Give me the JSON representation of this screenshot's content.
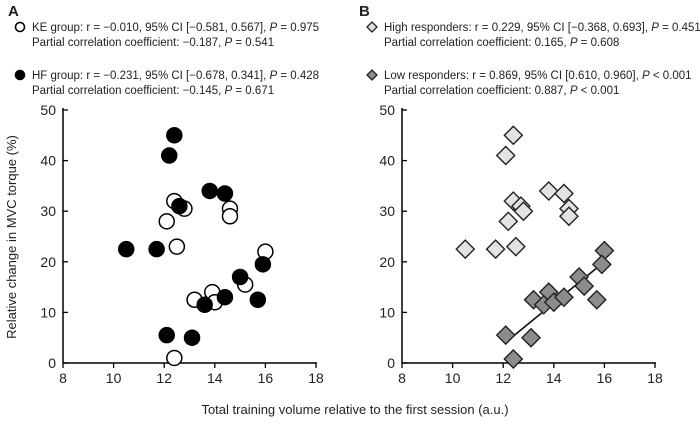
{
  "chart_data": [
    {
      "panel": "A",
      "type": "scatter",
      "xlabel": "Total training volume relative to the first session (a.u.)",
      "ylabel": "Relative change in MVC torque (%)",
      "xlim": [
        8,
        18
      ],
      "ylim": [
        0,
        50
      ],
      "xticks": [
        "8",
        "10",
        "12",
        "14",
        "16",
        "18"
      ],
      "yticks": [
        "0",
        "10",
        "20",
        "30",
        "40",
        "50"
      ],
      "legend": [
        {
          "line1": "KE group: r = −0.010, 95% CI [−0.581, 0.567], ",
          "p": "P",
          "line1b": " = 0.975",
          "line2": "Partial correlation coefficient: −0.187, ",
          "line2b": " = 0.541"
        },
        {
          "line1": "HF group: r = −0.231, 95% CI [−0.678, 0.341], ",
          "p": "P",
          "line1b": " = 0.428",
          "line2": "Partial correlation coefficient: −0.145, ",
          "line2b": " = 0.671"
        }
      ],
      "series": [
        {
          "name": "KE group",
          "marker": "open-circle",
          "color": "#ffffff",
          "points": [
            [
              12.4,
              32
            ],
            [
              12.1,
              28
            ],
            [
              12.8,
              30.5
            ],
            [
              12.5,
              23
            ],
            [
              14.6,
              30.5
            ],
            [
              14.6,
              29
            ],
            [
              16.0,
              22
            ],
            [
              13.2,
              12.5
            ],
            [
              13.9,
              14
            ],
            [
              14.0,
              12
            ],
            [
              15.2,
              15.5
            ],
            [
              12.4,
              1
            ]
          ]
        },
        {
          "name": "HF group",
          "marker": "filled-circle",
          "color": "#000000",
          "points": [
            [
              12.2,
              41
            ],
            [
              12.4,
              45
            ],
            [
              12.6,
              31
            ],
            [
              10.5,
              22.5
            ],
            [
              11.7,
              22.5
            ],
            [
              13.8,
              34
            ],
            [
              14.4,
              33.5
            ],
            [
              12.1,
              5.5
            ],
            [
              13.1,
              5
            ],
            [
              13.6,
              11.5
            ],
            [
              14.4,
              13
            ],
            [
              15.0,
              17
            ],
            [
              15.7,
              12.5
            ],
            [
              15.9,
              19.5
            ]
          ]
        }
      ]
    },
    {
      "panel": "B",
      "type": "scatter",
      "xlim": [
        8,
        18
      ],
      "ylim": [
        0,
        50
      ],
      "xticks": [
        "8",
        "10",
        "12",
        "14",
        "16",
        "18"
      ],
      "yticks": [
        "0",
        "10",
        "20",
        "30",
        "40",
        "50"
      ],
      "legend": [
        {
          "line1": "High responders: r = 0.229, 95% CI [−0.368, 0.693], ",
          "p": "P",
          "line1b": " = 0.451",
          "line2": "Partial correlation coefficient: 0.165, ",
          "line2b": " = 0.608"
        },
        {
          "line1": "Low responders: r = 0.869, 95% CI [0.610, 0.960], ",
          "p": "P",
          "line1b": " < 0.001",
          "line2": "Partial correlation coefficient: 0.887, ",
          "line2b": " < 0.001"
        }
      ],
      "series": [
        {
          "name": "High responders",
          "marker": "diamond",
          "color": "#e3e3e3",
          "points": [
            [
              12.4,
              45
            ],
            [
              12.1,
              41
            ],
            [
              12.4,
              32
            ],
            [
              12.7,
              31
            ],
            [
              12.8,
              30
            ],
            [
              12.2,
              28
            ],
            [
              13.8,
              34
            ],
            [
              14.4,
              33.5
            ],
            [
              14.6,
              30.5
            ],
            [
              14.6,
              29
            ],
            [
              10.5,
              22.5
            ],
            [
              11.7,
              22.5
            ],
            [
              12.5,
              23
            ]
          ]
        },
        {
          "name": "Low responders",
          "marker": "diamond",
          "color": "#8c8c8c",
          "points": [
            [
              16.0,
              22.2
            ],
            [
              15.9,
              19.5
            ],
            [
              15.0,
              17
            ],
            [
              15.2,
              15.2
            ],
            [
              13.8,
              14
            ],
            [
              13.2,
              12.5
            ],
            [
              13.6,
              11.5
            ],
            [
              14.0,
              12
            ],
            [
              14.4,
              13
            ],
            [
              15.7,
              12.5
            ],
            [
              12.1,
              5.5
            ],
            [
              13.1,
              5
            ],
            [
              12.4,
              0.8
            ]
          ],
          "fit_line": [
            [
              12.2,
              4.5
            ],
            [
              16.0,
              20
            ]
          ]
        }
      ]
    }
  ]
}
